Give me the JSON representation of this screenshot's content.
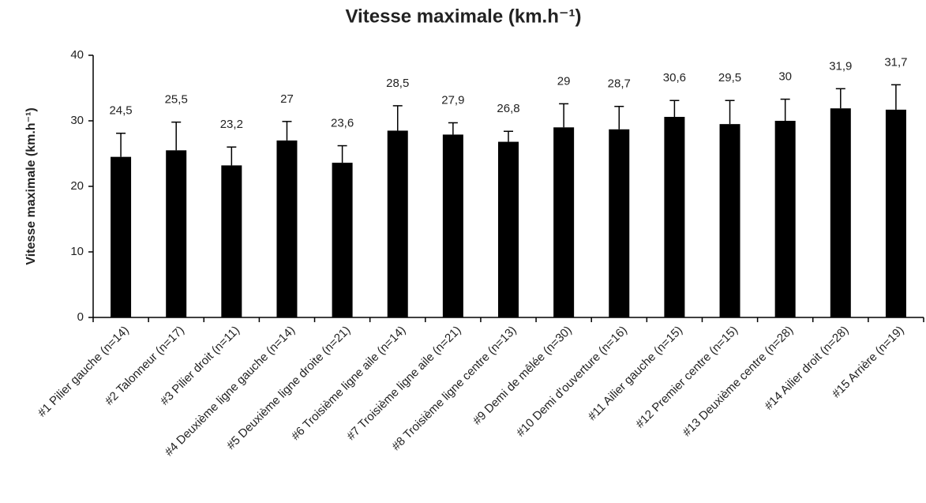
{
  "chart_data": {
    "type": "bar",
    "title": "Vitesse maximale (km.h⁻¹)",
    "y_label": "Vitesse maximale (km.h⁻¹)",
    "categories": [
      "#1 Pilier gauche (n=14)",
      "#2 Talonneur (n=17)",
      "#3 Pilier droit (n=11)",
      "#4 Deuxième ligne gauche (n=14)",
      "#5 Deuxième ligne droite (n=21)",
      "#6 Troisième ligne aile (n=14)",
      "#7 Troisième ligne aile (n=21)",
      "#8 Troisième ligne centre (n=13)",
      "#9 Demi de mêlée (n=30)",
      "#10 Demi d'ouverture (n=16)",
      "#11 Ailier gauche (n=15)",
      "#12 Premier centre (n=15)",
      "#13 Deuxième centre (n=28)",
      "#14 Ailier droit (n=28)",
      "#15 Arrière (n=19)"
    ],
    "values": [
      24.5,
      25.5,
      23.2,
      27,
      23.6,
      28.5,
      27.9,
      26.8,
      29,
      28.7,
      30.6,
      29.5,
      30,
      31.9,
      31.7
    ],
    "value_labels": [
      "24,5",
      "25,5",
      "23,2",
      "27",
      "23,6",
      "28,5",
      "27,9",
      "26,8",
      "29",
      "28,7",
      "30,6",
      "29,5",
      "30",
      "31,9",
      "31,7"
    ],
    "errors": [
      3.6,
      4.3,
      2.8,
      2.9,
      2.6,
      3.8,
      1.8,
      1.6,
      3.6,
      3.5,
      2.5,
      3.6,
      3.3,
      3.0,
      3.8
    ],
    "color": "#000000",
    "ylim": [
      0,
      40
    ],
    "yticks": [
      0,
      10,
      20,
      30,
      40
    ]
  }
}
